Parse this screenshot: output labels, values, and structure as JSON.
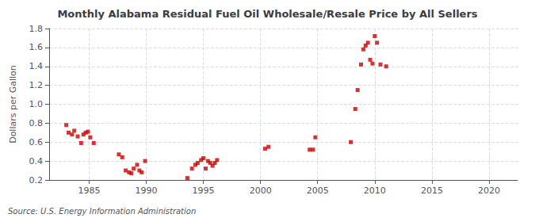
{
  "chart_data": {
    "type": "scatter",
    "title": "Monthly Alabama Residual Fuel Oil Wholesale/Resale Price by All Sellers",
    "ylabel": "Dollars per Gallon",
    "annotations": [
      "Source: U.S. Energy Information Administration"
    ],
    "color": "#cc0000",
    "marker": "square",
    "grid": true,
    "xlim": [
      1981.5,
      2022.5
    ],
    "ylim": [
      0.2,
      1.8
    ],
    "xticks": [
      1985,
      1990,
      1995,
      2000,
      2005,
      2010,
      2015,
      2020
    ],
    "yticks": [
      0.2,
      0.4,
      0.6,
      0.8,
      {
        "value": 1,
        "label": "1.0"
      },
      1.2,
      1.4,
      1.6,
      1.8
    ],
    "x": [
      1983.0,
      1983.2,
      1983.5,
      1983.7,
      1984.0,
      1984.3,
      1984.5,
      1984.7,
      1984.9,
      1985.1,
      1985.4,
      1987.6,
      1987.9,
      1988.2,
      1988.5,
      1988.7,
      1988.9,
      1989.2,
      1989.4,
      1989.6,
      1989.9,
      1993.6,
      1994.0,
      1994.3,
      1994.5,
      1994.8,
      1995.0,
      1995.2,
      1995.4,
      1995.6,
      1995.8,
      1996.0,
      1996.2,
      2000.4,
      2000.7,
      2004.3,
      2004.6,
      2004.8,
      2007.9,
      2008.3,
      2008.5,
      2008.8,
      2009.0,
      2009.2,
      2009.4,
      2009.6,
      2009.8,
      2010.0,
      2010.2,
      2010.5,
      2011.0
    ],
    "values": [
      0.78,
      0.7,
      0.68,
      0.72,
      0.66,
      0.59,
      0.68,
      0.7,
      0.71,
      0.65,
      0.59,
      0.47,
      0.44,
      0.3,
      0.28,
      0.27,
      0.32,
      0.36,
      0.3,
      0.28,
      0.4,
      0.22,
      0.32,
      0.36,
      0.38,
      0.41,
      0.43,
      0.32,
      0.4,
      0.38,
      0.35,
      0.38,
      0.41,
      0.53,
      0.55,
      0.52,
      0.52,
      0.65,
      0.6,
      0.95,
      1.15,
      1.42,
      1.58,
      1.62,
      1.65,
      1.47,
      1.43,
      1.72,
      1.65,
      1.42,
      1.4
    ]
  }
}
